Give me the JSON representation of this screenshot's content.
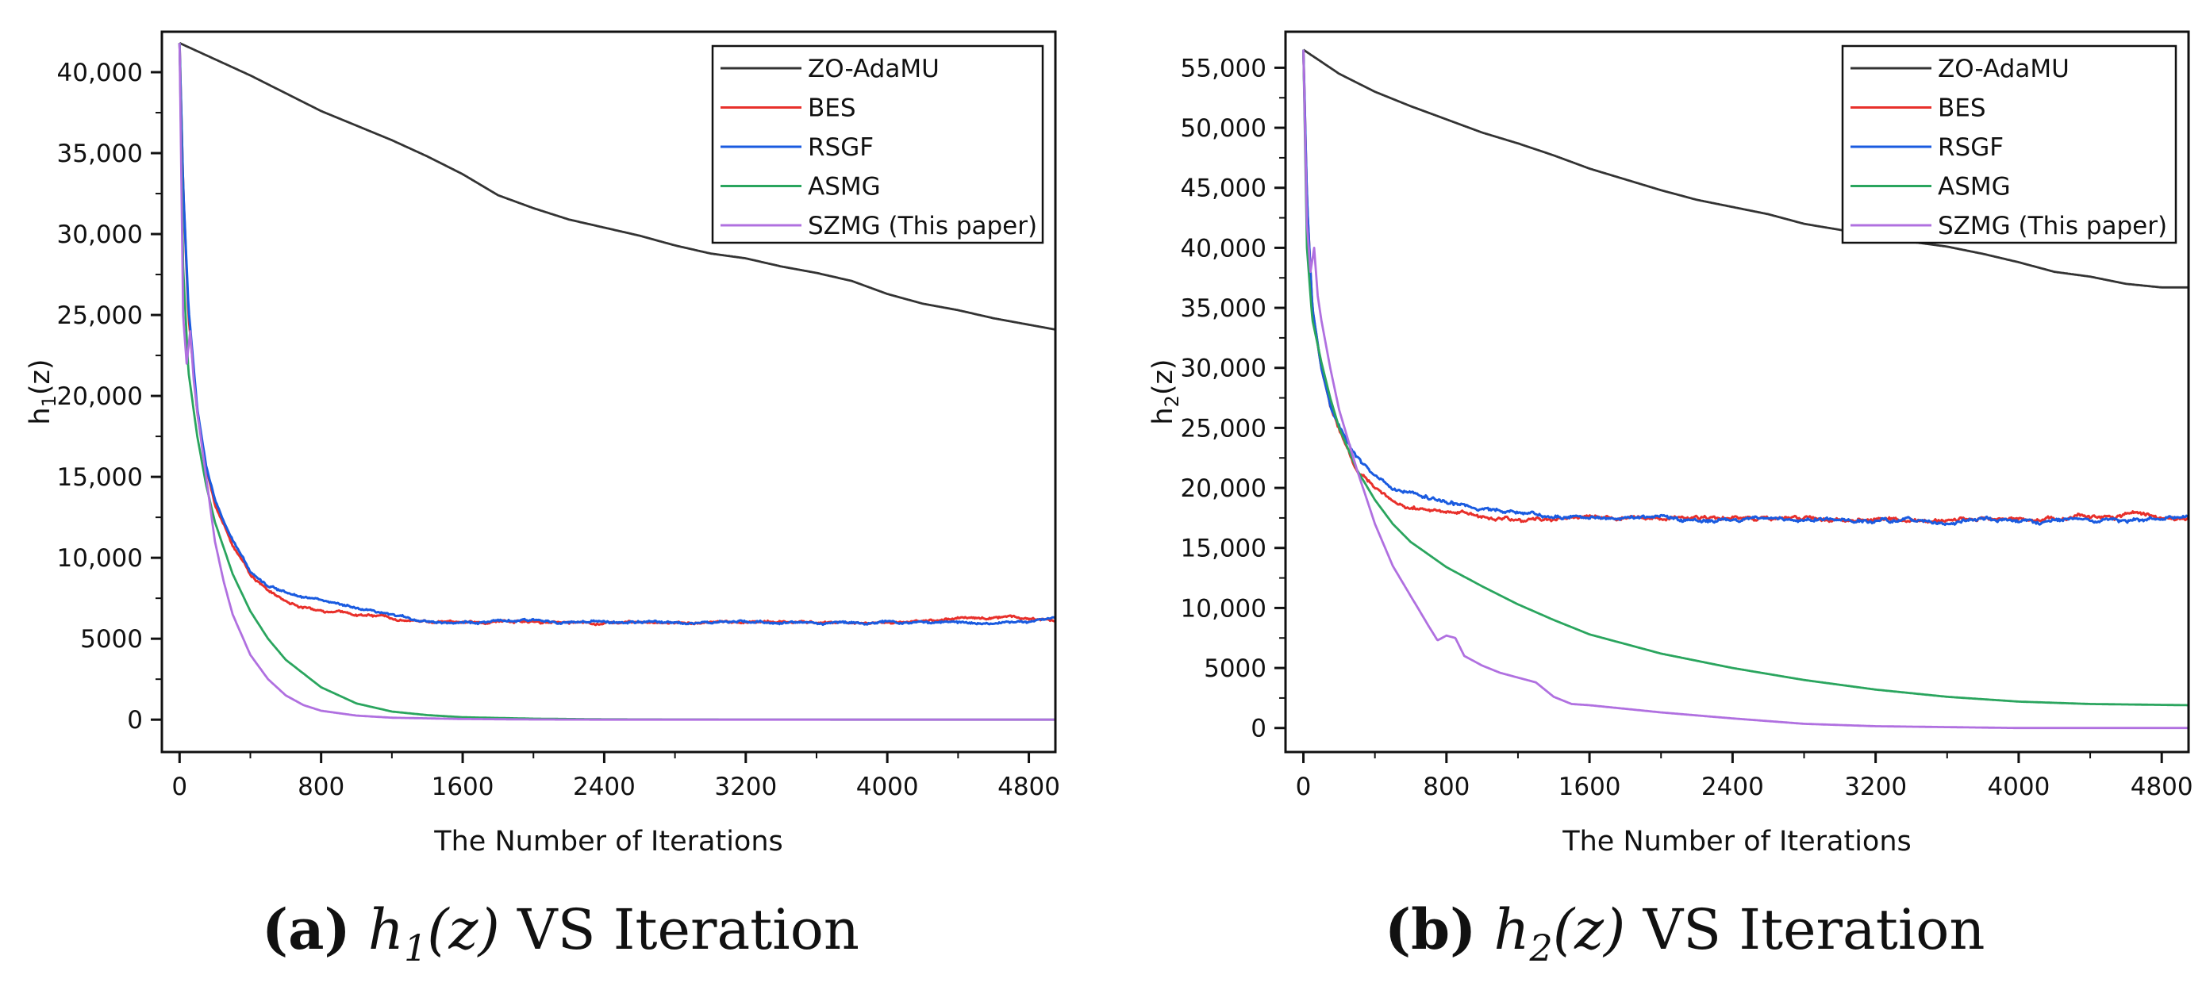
{
  "chart_data": [
    {
      "type": "line",
      "panel": "a",
      "caption": {
        "letter": "(a)",
        "math": "h1(z)",
        "suffix": "VS Iteration"
      },
      "xlabel": "The Number of Iterations",
      "ylabel": "h1(z)",
      "xlim": [
        -100,
        4950
      ],
      "ylim": [
        -2000,
        42500
      ],
      "xticks": [
        0,
        800,
        1600,
        2400,
        3200,
        4000,
        4800
      ],
      "xtick_labels": [
        "0",
        "800",
        "1600",
        "2400",
        "3200",
        "4000",
        "4800"
      ],
      "yticks": [
        0,
        5000,
        10000,
        15000,
        20000,
        25000,
        30000,
        35000,
        40000
      ],
      "ytick_labels": [
        "0",
        "5000",
        "10,000",
        "15,000",
        "20,000",
        "25,000",
        "30,000",
        "35,000",
        "40,000"
      ],
      "legend_position": "top-right",
      "series": [
        {
          "name": "ZO-AdaMU",
          "color": "#333333",
          "noise": 0,
          "x": [
            0,
            100,
            200,
            400,
            600,
            800,
            1000,
            1200,
            1400,
            1600,
            1800,
            2000,
            2200,
            2400,
            2600,
            2800,
            3000,
            3200,
            3400,
            3600,
            3800,
            4000,
            4200,
            4400,
            4600,
            4800,
            4950
          ],
          "y": [
            41800,
            41300,
            40800,
            39800,
            38700,
            37600,
            36700,
            35800,
            34800,
            33700,
            32400,
            31600,
            30900,
            30400,
            29900,
            29300,
            28800,
            28500,
            28000,
            27600,
            27100,
            26300,
            25700,
            25300,
            24800,
            24400,
            24100
          ]
        },
        {
          "name": "BES",
          "color": "#e8302b",
          "noise": 130,
          "x": [
            0,
            20,
            50,
            100,
            150,
            200,
            300,
            400,
            500,
            600,
            700,
            800,
            1000,
            1200,
            1400,
            1600,
            2000,
            2400,
            2800,
            3200,
            3600,
            4000,
            4400,
            4700,
            4950
          ],
          "y": [
            41800,
            33000,
            25000,
            19000,
            15500,
            13300,
            10800,
            9000,
            8000,
            7300,
            6900,
            6700,
            6500,
            6300,
            6100,
            6000,
            6100,
            6000,
            6000,
            6000,
            6000,
            6000,
            6200,
            6400,
            6100
          ]
        },
        {
          "name": "RSGF",
          "color": "#1a5be0",
          "noise": 130,
          "x": [
            0,
            20,
            50,
            100,
            150,
            200,
            300,
            400,
            500,
            600,
            700,
            800,
            1000,
            1200,
            1400,
            1600,
            2000,
            2400,
            2800,
            3200,
            3600,
            4000,
            4400,
            4700,
            4950
          ],
          "y": [
            41800,
            33000,
            25500,
            19200,
            15700,
            13500,
            11000,
            9200,
            8300,
            7900,
            7700,
            7400,
            6800,
            6400,
            6100,
            6000,
            6100,
            6000,
            6000,
            6000,
            6000,
            6000,
            6000,
            6000,
            6200
          ]
        },
        {
          "name": "ASMG",
          "color": "#2aa55e",
          "noise": 0,
          "x": [
            0,
            20,
            50,
            100,
            150,
            200,
            300,
            400,
            500,
            600,
            800,
            1000,
            1200,
            1400,
            1600,
            2000,
            2400,
            2800,
            3200,
            4000,
            4950
          ],
          "y": [
            41800,
            28000,
            21500,
            17500,
            14500,
            12200,
            9000,
            6700,
            5000,
            3700,
            2000,
            1000,
            500,
            280,
            150,
            60,
            20,
            10,
            5,
            0,
            0
          ]
        },
        {
          "name": "SZMG (This paper)",
          "color": "#b070e0",
          "noise": 0,
          "x": [
            0,
            20,
            40,
            60,
            80,
            100,
            150,
            200,
            250,
            300,
            400,
            500,
            600,
            700,
            800,
            1000,
            1200,
            1600,
            2000,
            2400,
            3200,
            4000,
            4950
          ],
          "y": [
            41800,
            25000,
            22000,
            24000,
            21000,
            19000,
            15000,
            11000,
            8500,
            6500,
            4000,
            2500,
            1500,
            900,
            550,
            250,
            120,
            40,
            10,
            0,
            0,
            0,
            0
          ]
        }
      ]
    },
    {
      "type": "line",
      "panel": "b",
      "caption": {
        "letter": "(b)",
        "math": "h2(z)",
        "suffix": "VS Iteration"
      },
      "xlabel": "The Number of Iterations",
      "ylabel": "h2(z)",
      "xlim": [
        -100,
        4950
      ],
      "ylim": [
        -2000,
        58000
      ],
      "xticks": [
        0,
        800,
        1600,
        2400,
        3200,
        4000,
        4800
      ],
      "xtick_labels": [
        "0",
        "800",
        "1600",
        "2400",
        "3200",
        "4000",
        "4800"
      ],
      "yticks": [
        0,
        5000,
        10000,
        15000,
        20000,
        25000,
        30000,
        35000,
        40000,
        45000,
        50000,
        55000
      ],
      "ytick_labels": [
        "0",
        "5000",
        "10,000",
        "15,000",
        "20,000",
        "25,000",
        "30,000",
        "35,000",
        "40,000",
        "45,000",
        "50,000",
        "55,000"
      ],
      "legend_position": "top-right",
      "series": [
        {
          "name": "ZO-AdaMU",
          "color": "#333333",
          "noise": 0,
          "x": [
            0,
            100,
            200,
            400,
            600,
            800,
            1000,
            1200,
            1400,
            1600,
            1800,
            2000,
            2200,
            2400,
            2600,
            2800,
            3000,
            3200,
            3400,
            3600,
            3800,
            4000,
            4200,
            4400,
            4600,
            4800,
            4950
          ],
          "y": [
            56500,
            55500,
            54500,
            53000,
            51800,
            50700,
            49600,
            48700,
            47700,
            46600,
            45700,
            44800,
            44000,
            43400,
            42800,
            42000,
            41500,
            41000,
            40500,
            40100,
            39500,
            38800,
            38000,
            37600,
            37000,
            36700,
            36700
          ]
        },
        {
          "name": "BES",
          "color": "#e8302b",
          "noise": 280,
          "x": [
            0,
            20,
            50,
            100,
            150,
            200,
            300,
            400,
            500,
            600,
            800,
            1000,
            1200,
            1600,
            2000,
            2400,
            2800,
            3200,
            3600,
            4000,
            4400,
            4700,
            4950
          ],
          "y": [
            56500,
            44000,
            35000,
            30000,
            27000,
            25000,
            21500,
            20000,
            19000,
            18500,
            18000,
            17600,
            17300,
            17400,
            17500,
            17500,
            17400,
            17400,
            17300,
            17400,
            17600,
            17800,
            17600
          ]
        },
        {
          "name": "RSGF",
          "color": "#1a5be0",
          "noise": 280,
          "x": [
            0,
            20,
            50,
            100,
            150,
            200,
            300,
            400,
            500,
            600,
            800,
            1000,
            1200,
            1600,
            2000,
            2400,
            2800,
            3200,
            3600,
            4000,
            4400,
            4700,
            4950
          ],
          "y": [
            56500,
            44000,
            35000,
            30000,
            27000,
            25200,
            22500,
            21000,
            20000,
            19500,
            18800,
            18200,
            17800,
            17500,
            17400,
            17500,
            17400,
            17300,
            17300,
            17300,
            17200,
            17300,
            17500
          ]
        },
        {
          "name": "ASMG",
          "color": "#2aa55e",
          "noise": 0,
          "x": [
            0,
            20,
            50,
            100,
            150,
            200,
            300,
            400,
            500,
            600,
            800,
            1000,
            1200,
            1400,
            1600,
            2000,
            2400,
            2800,
            3200,
            3600,
            4000,
            4400,
            4950
          ],
          "y": [
            56500,
            40000,
            34000,
            30500,
            27500,
            25000,
            21500,
            19000,
            17000,
            15500,
            13400,
            11800,
            10300,
            9000,
            7800,
            6200,
            5000,
            4000,
            3200,
            2600,
            2200,
            2000,
            1900
          ]
        },
        {
          "name": "SZMG (This paper)",
          "color": "#b070e0",
          "noise": 0,
          "x": [
            0,
            20,
            40,
            60,
            80,
            100,
            150,
            200,
            300,
            400,
            500,
            600,
            700,
            750,
            800,
            850,
            900,
            1000,
            1100,
            1200,
            1300,
            1400,
            1500,
            1600,
            2000,
            2400,
            2800,
            3200,
            4000,
            4950
          ],
          "y": [
            56500,
            42000,
            38000,
            40000,
            36000,
            34000,
            30000,
            26500,
            21500,
            17000,
            13500,
            11000,
            8500,
            7300,
            7700,
            7500,
            6000,
            5200,
            4600,
            4200,
            3800,
            2600,
            2000,
            1900,
            1300,
            800,
            350,
            150,
            0,
            0
          ]
        }
      ]
    }
  ]
}
